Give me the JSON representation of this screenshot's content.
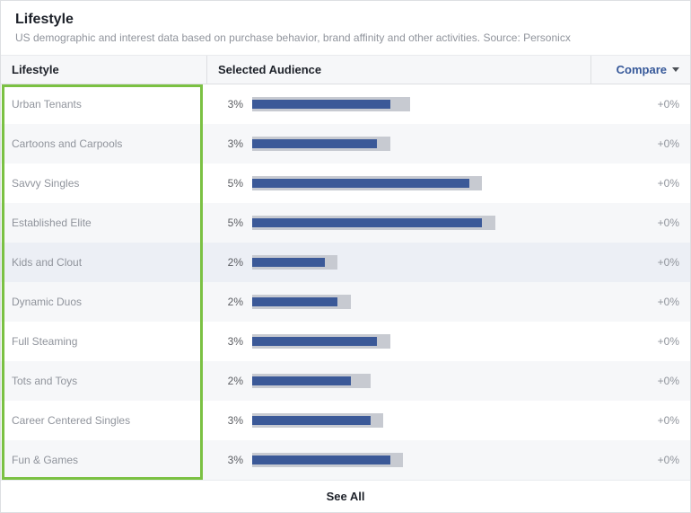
{
  "header": {
    "title": "Lifestyle",
    "subtitle": "US demographic and interest data based on purchase behavior, brand affinity and other activities. Source: Personicx"
  },
  "columns": {
    "lifestyle": "Lifestyle",
    "audience": "Selected Audience",
    "compare": "Compare"
  },
  "colors": {
    "bar_inner": "#3b5998",
    "bar_outer": "#c7cad1",
    "highlight_border": "#7bc143",
    "row_alt_bg": "#f6f7f9",
    "row_bg": "#ffffff",
    "row_hover_bg": "#eceff5",
    "text_muted": "#90949c",
    "link": "#365899"
  },
  "max_bar_pct": 6,
  "rows": [
    {
      "name": "Urban Tenants",
      "pct": 3,
      "outer_rel": 0.48,
      "inner_rel": 0.42,
      "compare": "+0%",
      "hovered": false
    },
    {
      "name": "Cartoons and Carpools",
      "pct": 3,
      "outer_rel": 0.42,
      "inner_rel": 0.38,
      "compare": "+0%",
      "hovered": false
    },
    {
      "name": "Savvy Singles",
      "pct": 5,
      "outer_rel": 0.7,
      "inner_rel": 0.66,
      "compare": "+0%",
      "hovered": false
    },
    {
      "name": "Established Elite",
      "pct": 5,
      "outer_rel": 0.74,
      "inner_rel": 0.7,
      "compare": "+0%",
      "hovered": false
    },
    {
      "name": "Kids and Clout",
      "pct": 2,
      "outer_rel": 0.26,
      "inner_rel": 0.22,
      "compare": "+0%",
      "hovered": true
    },
    {
      "name": "Dynamic Duos",
      "pct": 2,
      "outer_rel": 0.3,
      "inner_rel": 0.26,
      "compare": "+0%",
      "hovered": false
    },
    {
      "name": "Full Steaming",
      "pct": 3,
      "outer_rel": 0.42,
      "inner_rel": 0.38,
      "compare": "+0%",
      "hovered": false
    },
    {
      "name": "Tots and Toys",
      "pct": 2,
      "outer_rel": 0.36,
      "inner_rel": 0.3,
      "compare": "+0%",
      "hovered": false
    },
    {
      "name": "Career Centered Singles",
      "pct": 3,
      "outer_rel": 0.4,
      "inner_rel": 0.36,
      "compare": "+0%",
      "hovered": false
    },
    {
      "name": "Fun & Games",
      "pct": 3,
      "outer_rel": 0.46,
      "inner_rel": 0.42,
      "compare": "+0%",
      "hovered": false
    }
  ],
  "footer": {
    "see_all": "See All"
  }
}
